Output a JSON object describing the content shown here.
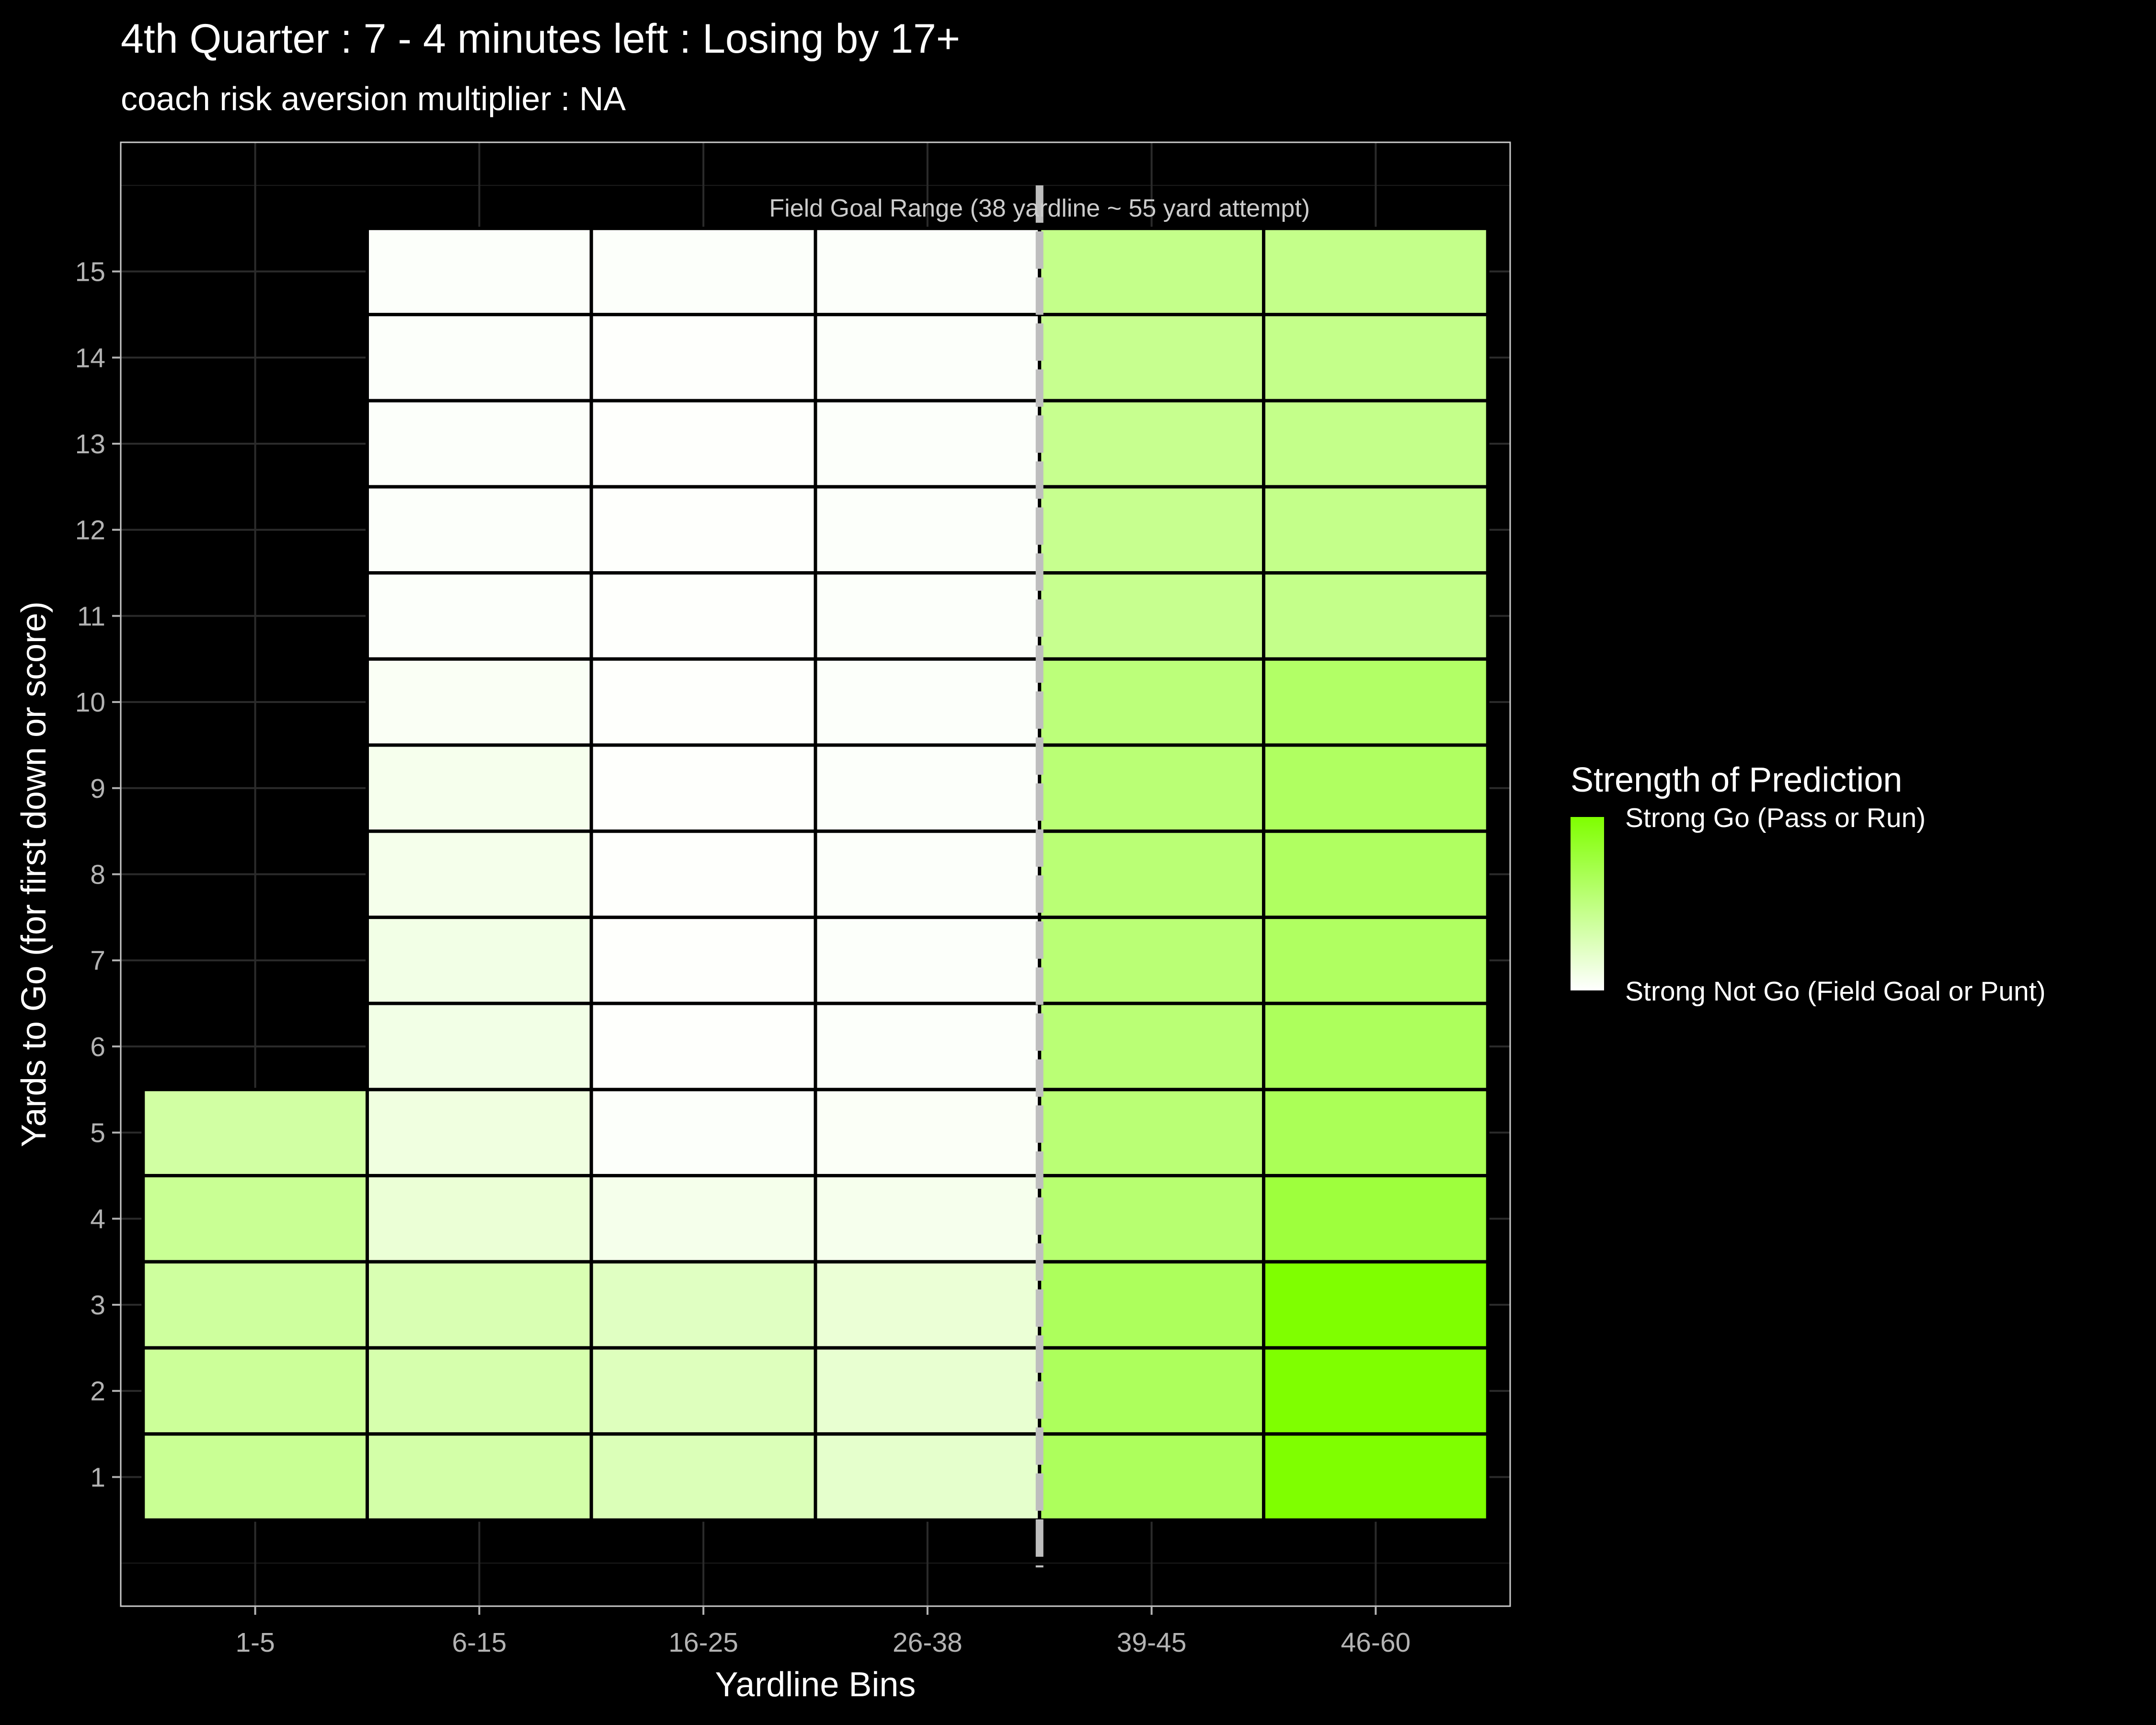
{
  "chart_data": {
    "type": "heatmap",
    "title": "4th Quarter : 7 - 4 minutes left : Losing by 17+",
    "subtitle": "coach risk aversion multiplier : NA",
    "xlabel": "Yardline Bins",
    "ylabel": "Yards to Go (for first down or score)",
    "x_categories": [
      "1-5",
      "6-15",
      "16-25",
      "26-38",
      "39-45",
      "46-60"
    ],
    "y_ticks": [
      1,
      2,
      3,
      4,
      5,
      6,
      7,
      8,
      9,
      10,
      11,
      12,
      13,
      14,
      15
    ],
    "ylim": [
      -0.5,
      16.5
    ],
    "grid": true,
    "color_scale": {
      "low": "#ffffff",
      "high": "#7fff00"
    },
    "cells": [
      {
        "x": "1-5",
        "y": 1,
        "value": 0.42
      },
      {
        "x": "1-5",
        "y": 2,
        "value": 0.4
      },
      {
        "x": "1-5",
        "y": 3,
        "value": 0.38
      },
      {
        "x": "1-5",
        "y": 4,
        "value": 0.42
      },
      {
        "x": "1-5",
        "y": 5,
        "value": 0.36
      },
      {
        "x": "6-15",
        "y": 1,
        "value": 0.34
      },
      {
        "x": "6-15",
        "y": 2,
        "value": 0.32
      },
      {
        "x": "6-15",
        "y": 3,
        "value": 0.3
      },
      {
        "x": "6-15",
        "y": 4,
        "value": 0.16
      },
      {
        "x": "6-15",
        "y": 5,
        "value": 0.12
      },
      {
        "x": "6-15",
        "y": 6,
        "value": 0.1
      },
      {
        "x": "6-15",
        "y": 7,
        "value": 0.1
      },
      {
        "x": "6-15",
        "y": 8,
        "value": 0.08
      },
      {
        "x": "6-15",
        "y": 9,
        "value": 0.07
      },
      {
        "x": "6-15",
        "y": 10,
        "value": 0.04
      },
      {
        "x": "6-15",
        "y": 11,
        "value": 0.02
      },
      {
        "x": "6-15",
        "y": 12,
        "value": 0.02
      },
      {
        "x": "6-15",
        "y": 13,
        "value": 0.02
      },
      {
        "x": "6-15",
        "y": 14,
        "value": 0.02
      },
      {
        "x": "6-15",
        "y": 15,
        "value": 0.02
      },
      {
        "x": "16-25",
        "y": 1,
        "value": 0.28
      },
      {
        "x": "16-25",
        "y": 2,
        "value": 0.26
      },
      {
        "x": "16-25",
        "y": 3,
        "value": 0.24
      },
      {
        "x": "16-25",
        "y": 4,
        "value": 0.08
      },
      {
        "x": "16-25",
        "y": 5,
        "value": 0.02
      },
      {
        "x": "16-25",
        "y": 6,
        "value": 0.01
      },
      {
        "x": "16-25",
        "y": 7,
        "value": 0.01
      },
      {
        "x": "16-25",
        "y": 8,
        "value": 0.01
      },
      {
        "x": "16-25",
        "y": 9,
        "value": 0.01
      },
      {
        "x": "16-25",
        "y": 10,
        "value": 0.01
      },
      {
        "x": "16-25",
        "y": 11,
        "value": 0.01
      },
      {
        "x": "16-25",
        "y": 12,
        "value": 0.01
      },
      {
        "x": "16-25",
        "y": 13,
        "value": 0.01
      },
      {
        "x": "16-25",
        "y": 14,
        "value": 0.01
      },
      {
        "x": "16-25",
        "y": 15,
        "value": 0.02
      },
      {
        "x": "26-38",
        "y": 1,
        "value": 0.2
      },
      {
        "x": "26-38",
        "y": 2,
        "value": 0.18
      },
      {
        "x": "26-38",
        "y": 3,
        "value": 0.16
      },
      {
        "x": "26-38",
        "y": 4,
        "value": 0.07
      },
      {
        "x": "26-38",
        "y": 5,
        "value": 0.03
      },
      {
        "x": "26-38",
        "y": 6,
        "value": 0.02
      },
      {
        "x": "26-38",
        "y": 7,
        "value": 0.02
      },
      {
        "x": "26-38",
        "y": 8,
        "value": 0.02
      },
      {
        "x": "26-38",
        "y": 9,
        "value": 0.02
      },
      {
        "x": "26-38",
        "y": 10,
        "value": 0.02
      },
      {
        "x": "26-38",
        "y": 11,
        "value": 0.02
      },
      {
        "x": "26-38",
        "y": 12,
        "value": 0.02
      },
      {
        "x": "26-38",
        "y": 13,
        "value": 0.02
      },
      {
        "x": "26-38",
        "y": 14,
        "value": 0.02
      },
      {
        "x": "26-38",
        "y": 15,
        "value": 0.02
      },
      {
        "x": "39-45",
        "y": 1,
        "value": 0.64
      },
      {
        "x": "39-45",
        "y": 2,
        "value": 0.64
      },
      {
        "x": "39-45",
        "y": 3,
        "value": 0.64
      },
      {
        "x": "39-45",
        "y": 4,
        "value": 0.56
      },
      {
        "x": "39-45",
        "y": 5,
        "value": 0.54
      },
      {
        "x": "39-45",
        "y": 6,
        "value": 0.54
      },
      {
        "x": "39-45",
        "y": 7,
        "value": 0.54
      },
      {
        "x": "39-45",
        "y": 8,
        "value": 0.54
      },
      {
        "x": "39-45",
        "y": 9,
        "value": 0.54
      },
      {
        "x": "39-45",
        "y": 10,
        "value": 0.52
      },
      {
        "x": "39-45",
        "y": 11,
        "value": 0.44
      },
      {
        "x": "39-45",
        "y": 12,
        "value": 0.44
      },
      {
        "x": "39-45",
        "y": 13,
        "value": 0.44
      },
      {
        "x": "39-45",
        "y": 14,
        "value": 0.44
      },
      {
        "x": "39-45",
        "y": 15,
        "value": 0.46
      },
      {
        "x": "46-60",
        "y": 1,
        "value": 1.0
      },
      {
        "x": "46-60",
        "y": 2,
        "value": 1.0
      },
      {
        "x": "46-60",
        "y": 3,
        "value": 1.0
      },
      {
        "x": "46-60",
        "y": 4,
        "value": 0.76
      },
      {
        "x": "46-60",
        "y": 5,
        "value": 0.66
      },
      {
        "x": "46-60",
        "y": 6,
        "value": 0.64
      },
      {
        "x": "46-60",
        "y": 7,
        "value": 0.62
      },
      {
        "x": "46-60",
        "y": 8,
        "value": 0.62
      },
      {
        "x": "46-60",
        "y": 9,
        "value": 0.62
      },
      {
        "x": "46-60",
        "y": 10,
        "value": 0.6
      },
      {
        "x": "46-60",
        "y": 11,
        "value": 0.46
      },
      {
        "x": "46-60",
        "y": 12,
        "value": 0.46
      },
      {
        "x": "46-60",
        "y": 13,
        "value": 0.46
      },
      {
        "x": "46-60",
        "y": 14,
        "value": 0.46
      },
      {
        "x": "46-60",
        "y": 15,
        "value": 0.46
      }
    ],
    "reference_line": {
      "label": "Field Goal Range (38 yardline ~ 55 yard attempt)",
      "between": [
        "26-38",
        "39-45"
      ],
      "style": "dashed",
      "color": "#bebebe"
    },
    "legend": {
      "title": "Strength of Prediction",
      "high_label": "Strong Go (Pass or Run)",
      "low_label": "Strong Not Go (Field Goal or Punt)",
      "placement": "right"
    }
  }
}
